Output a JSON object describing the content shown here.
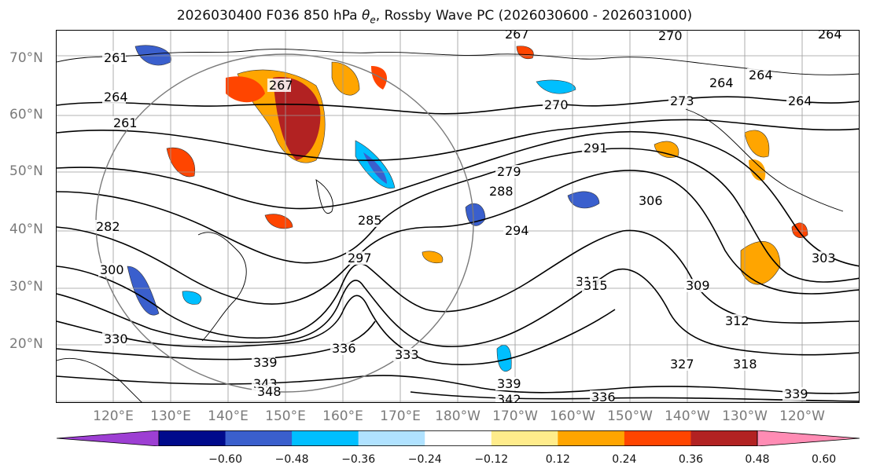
{
  "title": {
    "prefix": "2026030400 F036 850 hPa ",
    "theta_symbol": "θ",
    "theta_sub": "e",
    "suffix": ", Rossby Wave PC (2026030600 - 2026031000)"
  },
  "lat_labels": [
    "70°N",
    "60°N",
    "50°N",
    "40°N",
    "30°N",
    "20°N"
  ],
  "lon_labels": [
    "120°E",
    "130°E",
    "140°E",
    "150°E",
    "160°E",
    "170°E",
    "180°W",
    "170°W",
    "160°W",
    "150°W",
    "140°W",
    "130°W",
    "120°W"
  ],
  "contour_labels": [
    "261",
    "264",
    "261",
    "267",
    "270",
    "264",
    "264",
    "270",
    "264",
    "264",
    "267",
    "273",
    "282",
    "285",
    "288",
    "291",
    "279",
    "294",
    "297",
    "300",
    "306",
    "303",
    "309",
    "312",
    "315",
    "315",
    "318",
    "327",
    "330",
    "333",
    "336",
    "339",
    "339",
    "342",
    "343",
    "348",
    "336",
    "339"
  ],
  "colorbar": {
    "colors": [
      "#9d3fd3",
      "#000a8c",
      "#3a5fcd",
      "#00bfff",
      "#b0e2ff",
      "#ffffff",
      "#ffec8b",
      "#ffa500",
      "#ff4500",
      "#b22222",
      "#ff8cb4"
    ],
    "tick_labels": [
      "−0.60",
      "−0.48",
      "−0.36",
      "−0.24",
      "−0.12",
      "0.12",
      "0.24",
      "0.36",
      "0.48",
      "0.60"
    ]
  },
  "grid_color": "#8c8c8c"
}
